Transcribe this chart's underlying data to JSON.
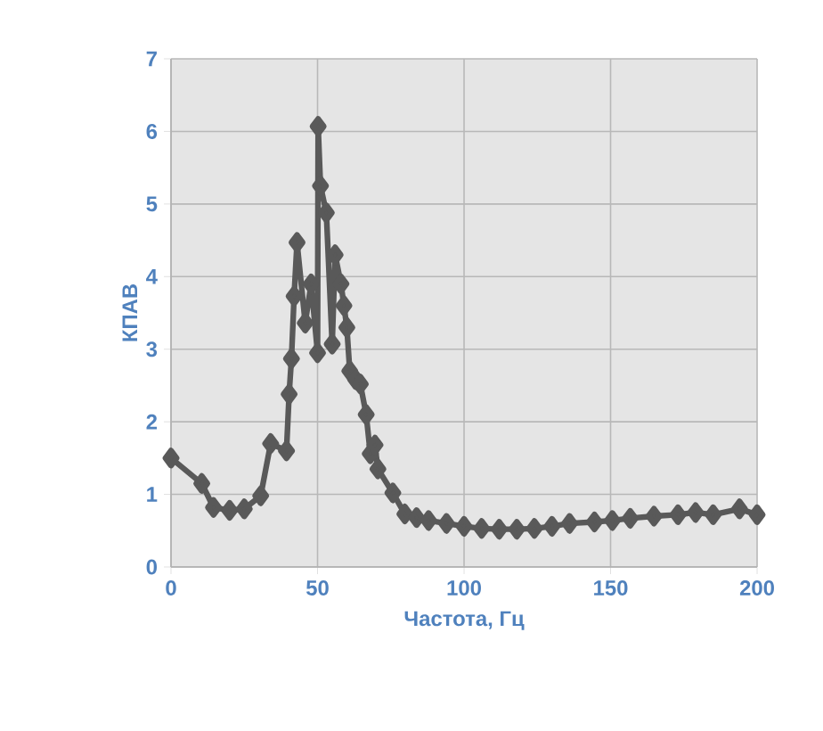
{
  "chart_data": {
    "type": "line",
    "xlabel": "Частота, Гц",
    "ylabel": "КПАВ",
    "xlim": [
      0,
      200
    ],
    "xticks": [
      0,
      50,
      100,
      150,
      200
    ],
    "ylim": [
      0,
      7
    ],
    "yticks": [
      0,
      1,
      2,
      3,
      4,
      5,
      6,
      7
    ],
    "grid": true,
    "marker": "diamond",
    "line_style": "solid",
    "series": [
      {
        "color": "#595959",
        "x": [
          0,
          10.5,
          14.5,
          20,
          25,
          30.6,
          34,
          39.4,
          40.3,
          41.1,
          42,
          43,
          45.8,
          47.8,
          50,
          50.2,
          51,
          53,
          55,
          56,
          58,
          59,
          60,
          61,
          63,
          64.6,
          66.6,
          68,
          69.6,
          70.6,
          75.7,
          79.8,
          83.8,
          87.9,
          94,
          100,
          106,
          112,
          118,
          124,
          130,
          136,
          144.5,
          150.6,
          156.7,
          164.8,
          173,
          179,
          185,
          194,
          200
        ],
        "values": [
          1.5,
          1.15,
          0.82,
          0.78,
          0.8,
          0.98,
          1.7,
          1.6,
          2.38,
          2.87,
          3.73,
          4.47,
          3.36,
          3.9,
          2.95,
          6.07,
          5.25,
          4.88,
          3.07,
          4.3,
          3.9,
          3.6,
          3.3,
          2.7,
          2.58,
          2.52,
          2.1,
          1.56,
          1.68,
          1.35,
          1.02,
          0.73,
          0.68,
          0.64,
          0.6,
          0.56,
          0.53,
          0.52,
          0.52,
          0.53,
          0.56,
          0.6,
          0.62,
          0.64,
          0.67,
          0.7,
          0.72,
          0.75,
          0.72,
          0.8,
          0.72
        ]
      }
    ]
  }
}
